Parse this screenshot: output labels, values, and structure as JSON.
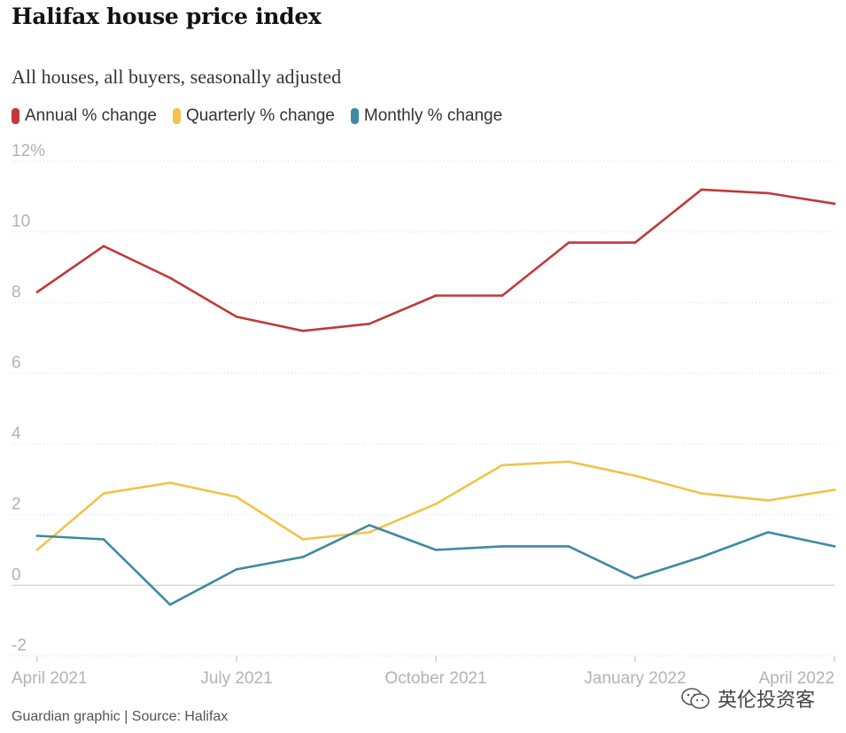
{
  "header": {
    "title": "Halifax house price index",
    "subtitle": "All houses, all buyers, seasonally adjusted"
  },
  "legend": [
    {
      "label": "Annual % change",
      "color": "#c0393b"
    },
    {
      "label": "Quarterly % change",
      "color": "#f0c44a"
    },
    {
      "label": "Monthly % change",
      "color": "#3f8aa0"
    }
  ],
  "footer": {
    "source": "Guardian graphic | Source: Halifax",
    "watermark_text": "英伦投资客",
    "watermark_icon": "wechat-icon"
  },
  "chart_data": {
    "type": "line",
    "x": [
      "Apr 2021",
      "May 2021",
      "Jun 2021",
      "Jul 2021",
      "Aug 2021",
      "Sep 2021",
      "Oct 2021",
      "Nov 2021",
      "Dec 2021",
      "Jan 2022",
      "Feb 2022",
      "Mar 2022",
      "Apr 2022"
    ],
    "tick_labels": [
      {
        "text": "April 2021",
        "index": 0
      },
      {
        "text": "July 2021",
        "index": 3
      },
      {
        "text": "October 2021",
        "index": 6
      },
      {
        "text": "January 2022",
        "index": 9
      },
      {
        "text": "April 2022",
        "index": 12
      }
    ],
    "y_ticks": [
      {
        "value": 12,
        "label": "12%"
      },
      {
        "value": 10,
        "label": "10"
      },
      {
        "value": 8,
        "label": "8"
      },
      {
        "value": 6,
        "label": "6"
      },
      {
        "value": 4,
        "label": "4"
      },
      {
        "value": 2,
        "label": "2"
      },
      {
        "value": 0,
        "label": "0"
      },
      {
        "value": -2,
        "label": "-2"
      }
    ],
    "ylim": [
      -2,
      12
    ],
    "series": [
      {
        "name": "Annual % change",
        "color": "#c0393b",
        "values": [
          8.3,
          9.6,
          8.7,
          7.6,
          7.2,
          7.4,
          8.2,
          8.2,
          9.7,
          9.7,
          11.2,
          11.1,
          10.8
        ]
      },
      {
        "name": "Quarterly % change",
        "color": "#f0c44a",
        "values": [
          1.0,
          2.6,
          2.9,
          2.5,
          1.3,
          1.5,
          2.3,
          3.4,
          3.5,
          3.1,
          2.6,
          2.4,
          2.7
        ]
      },
      {
        "name": "Monthly % change",
        "color": "#3f8aa0",
        "values": [
          1.4,
          1.3,
          -0.55,
          0.45,
          0.8,
          1.7,
          1.0,
          1.1,
          1.1,
          0.2,
          0.8,
          1.5,
          1.1
        ]
      }
    ]
  }
}
